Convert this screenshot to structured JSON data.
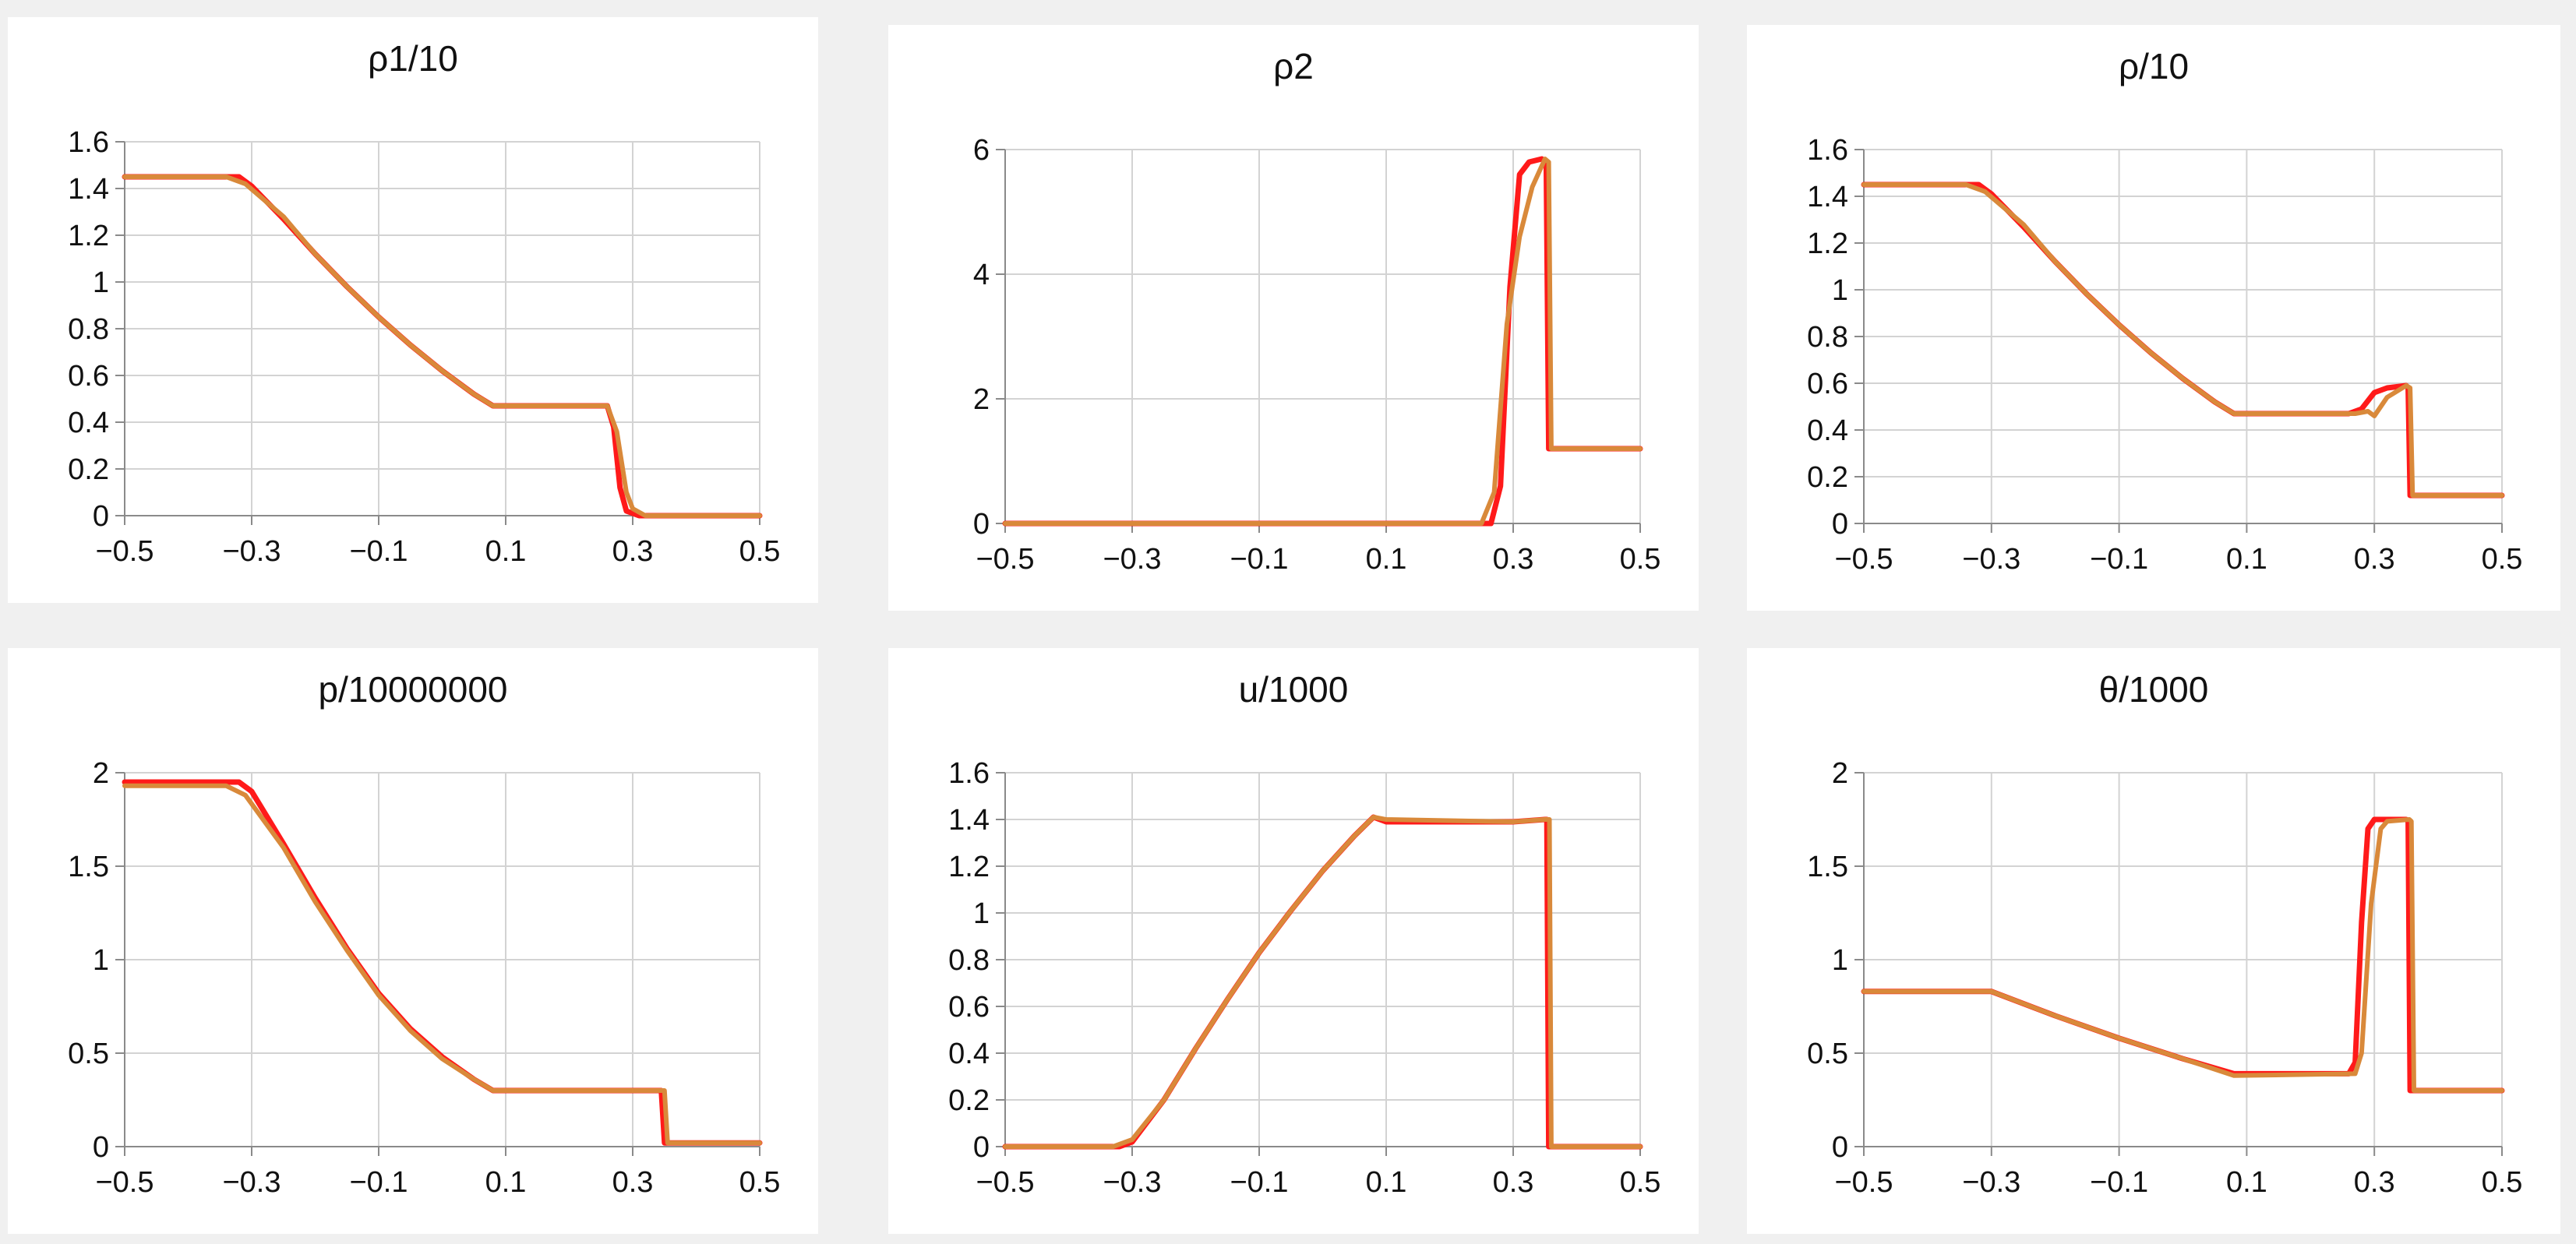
{
  "colors": {
    "series_a": "#ff1a1a",
    "series_b": "#d9893a",
    "grid": "#d3d3d3",
    "panel_bg": "#ffffff",
    "page_bg": "#f0f0f0"
  },
  "chart_data": [
    {
      "type": "line",
      "title": "ρ1/10",
      "xlim": [
        -0.5,
        0.5
      ],
      "ylim": [
        0,
        1.6
      ],
      "xticks": [
        -0.5,
        -0.3,
        -0.1,
        0.1,
        0.3,
        0.5
      ],
      "xtick_labels": [
        "−0.5",
        "−0.3",
        "−0.1",
        "0.1",
        "0.3",
        "0.5"
      ],
      "yticks": [
        0,
        0.2,
        0.4,
        0.6,
        0.8,
        1,
        1.2,
        1.4,
        1.6
      ],
      "ytick_labels": [
        "0",
        "0.2",
        "0.4",
        "0.6",
        "0.8",
        "1",
        "1.2",
        "1.4",
        "1.6"
      ],
      "grid": true,
      "series": [
        {
          "color": "#ff1a1a",
          "x": [
            -0.5,
            -0.32,
            -0.3,
            -0.25,
            -0.2,
            -0.15,
            -0.1,
            -0.05,
            0,
            0.05,
            0.08,
            0.26,
            0.27,
            0.28,
            0.29,
            0.31,
            0.5
          ],
          "y": [
            1.45,
            1.45,
            1.41,
            1.27,
            1.12,
            0.98,
            0.85,
            0.73,
            0.62,
            0.52,
            0.47,
            0.47,
            0.38,
            0.12,
            0.02,
            0.0,
            0.0
          ]
        },
        {
          "color": "#d9893a",
          "x": [
            -0.5,
            -0.34,
            -0.31,
            -0.25,
            -0.2,
            -0.15,
            -0.1,
            -0.05,
            0,
            0.05,
            0.08,
            0.26,
            0.275,
            0.29,
            0.3,
            0.32,
            0.5
          ],
          "y": [
            1.45,
            1.45,
            1.42,
            1.28,
            1.12,
            0.98,
            0.85,
            0.73,
            0.62,
            0.52,
            0.47,
            0.47,
            0.36,
            0.1,
            0.03,
            0.0,
            0.0
          ]
        }
      ]
    },
    {
      "type": "line",
      "title": "ρ2",
      "xlim": [
        -0.5,
        0.5
      ],
      "ylim": [
        0,
        6
      ],
      "xticks": [
        -0.5,
        -0.3,
        -0.1,
        0.1,
        0.3,
        0.5
      ],
      "xtick_labels": [
        "−0.5",
        "−0.3",
        "−0.1",
        "0.1",
        "0.3",
        "0.5"
      ],
      "yticks": [
        0,
        2,
        4,
        6
      ],
      "ytick_labels": [
        "0",
        "2",
        "4",
        "6"
      ],
      "grid": true,
      "series": [
        {
          "color": "#ff1a1a",
          "x": [
            -0.5,
            0.265,
            0.28,
            0.295,
            0.31,
            0.325,
            0.345,
            0.352,
            0.356,
            0.5
          ],
          "y": [
            0,
            0,
            0.6,
            3.8,
            5.6,
            5.8,
            5.85,
            5.8,
            1.2,
            1.2
          ]
        },
        {
          "color": "#d9893a",
          "x": [
            -0.5,
            0.25,
            0.27,
            0.29,
            0.31,
            0.33,
            0.35,
            0.356,
            0.36,
            0.5
          ],
          "y": [
            0,
            0,
            0.5,
            3.2,
            4.6,
            5.4,
            5.85,
            5.8,
            1.2,
            1.2
          ]
        }
      ]
    },
    {
      "type": "line",
      "title": "ρ/10",
      "xlim": [
        -0.5,
        0.5
      ],
      "ylim": [
        0,
        1.6
      ],
      "xticks": [
        -0.5,
        -0.3,
        -0.1,
        0.1,
        0.3,
        0.5
      ],
      "xtick_labels": [
        "−0.5",
        "−0.3",
        "−0.1",
        "0.1",
        "0.3",
        "0.5"
      ],
      "yticks": [
        0,
        0.2,
        0.4,
        0.6,
        0.8,
        1,
        1.2,
        1.4,
        1.6
      ],
      "ytick_labels": [
        "0",
        "0.2",
        "0.4",
        "0.6",
        "0.8",
        "1",
        "1.2",
        "1.4",
        "1.6"
      ],
      "grid": true,
      "series": [
        {
          "color": "#ff1a1a",
          "x": [
            -0.5,
            -0.32,
            -0.3,
            -0.25,
            -0.2,
            -0.15,
            -0.1,
            -0.05,
            0,
            0.05,
            0.08,
            0.26,
            0.28,
            0.3,
            0.32,
            0.35,
            0.353,
            0.356,
            0.5
          ],
          "y": [
            1.45,
            1.45,
            1.41,
            1.27,
            1.12,
            0.98,
            0.85,
            0.73,
            0.62,
            0.52,
            0.47,
            0.47,
            0.49,
            0.56,
            0.58,
            0.59,
            0.58,
            0.12,
            0.12
          ]
        },
        {
          "color": "#d9893a",
          "x": [
            -0.5,
            -0.34,
            -0.31,
            -0.25,
            -0.2,
            -0.15,
            -0.1,
            -0.05,
            0,
            0.05,
            0.08,
            0.27,
            0.29,
            0.3,
            0.32,
            0.35,
            0.356,
            0.36,
            0.5
          ],
          "y": [
            1.45,
            1.45,
            1.42,
            1.28,
            1.12,
            0.98,
            0.85,
            0.73,
            0.62,
            0.52,
            0.47,
            0.47,
            0.48,
            0.46,
            0.54,
            0.59,
            0.58,
            0.12,
            0.12
          ]
        }
      ]
    },
    {
      "type": "line",
      "title": "p/10000000",
      "xlim": [
        -0.5,
        0.5
      ],
      "ylim": [
        0,
        2
      ],
      "xticks": [
        -0.5,
        -0.3,
        -0.1,
        0.1,
        0.3,
        0.5
      ],
      "xtick_labels": [
        "−0.5",
        "−0.3",
        "−0.1",
        "0.1",
        "0.3",
        "0.5"
      ],
      "yticks": [
        0,
        0.5,
        1,
        1.5,
        2
      ],
      "ytick_labels": [
        "0",
        "0.5",
        "1",
        "1.5",
        "2"
      ],
      "grid": true,
      "series": [
        {
          "color": "#ff1a1a",
          "x": [
            -0.5,
            -0.32,
            -0.3,
            -0.25,
            -0.2,
            -0.15,
            -0.1,
            -0.05,
            0,
            0.05,
            0.08,
            0.34,
            0.345,
            0.35,
            0.5
          ],
          "y": [
            1.95,
            1.95,
            1.9,
            1.62,
            1.33,
            1.06,
            0.82,
            0.63,
            0.48,
            0.36,
            0.3,
            0.3,
            0.3,
            0.02,
            0.02
          ]
        },
        {
          "color": "#d9893a",
          "x": [
            -0.5,
            -0.34,
            -0.31,
            -0.25,
            -0.2,
            -0.15,
            -0.1,
            -0.05,
            0,
            0.05,
            0.08,
            0.345,
            0.35,
            0.355,
            0.5
          ],
          "y": [
            1.93,
            1.93,
            1.88,
            1.6,
            1.31,
            1.05,
            0.81,
            0.62,
            0.47,
            0.36,
            0.3,
            0.3,
            0.3,
            0.02,
            0.02
          ]
        }
      ]
    },
    {
      "type": "line",
      "title": "u/1000",
      "xlim": [
        -0.5,
        0.5
      ],
      "ylim": [
        0,
        1.6
      ],
      "xticks": [
        -0.5,
        -0.3,
        -0.1,
        0.1,
        0.3,
        0.5
      ],
      "xtick_labels": [
        "−0.5",
        "−0.3",
        "−0.1",
        "0.1",
        "0.3",
        "0.5"
      ],
      "yticks": [
        0,
        0.2,
        0.4,
        0.6,
        0.8,
        1,
        1.2,
        1.4,
        1.6
      ],
      "ytick_labels": [
        "0",
        "0.2",
        "0.4",
        "0.6",
        "0.8",
        "1",
        "1.2",
        "1.4",
        "1.6"
      ],
      "grid": true,
      "series": [
        {
          "color": "#ff1a1a",
          "x": [
            -0.5,
            -0.32,
            -0.3,
            -0.25,
            -0.2,
            -0.15,
            -0.1,
            -0.05,
            0,
            0.05,
            0.08,
            0.1,
            0.3,
            0.35,
            0.353,
            0.356,
            0.5
          ],
          "y": [
            0,
            0,
            0.02,
            0.2,
            0.42,
            0.63,
            0.83,
            1.01,
            1.18,
            1.33,
            1.41,
            1.39,
            1.39,
            1.4,
            1.4,
            0,
            0
          ]
        },
        {
          "color": "#d9893a",
          "x": [
            -0.5,
            -0.33,
            -0.3,
            -0.25,
            -0.2,
            -0.15,
            -0.1,
            -0.05,
            0,
            0.05,
            0.08,
            0.1,
            0.3,
            0.35,
            0.357,
            0.36,
            0.5
          ],
          "y": [
            0,
            0,
            0.03,
            0.2,
            0.42,
            0.63,
            0.83,
            1.01,
            1.18,
            1.33,
            1.41,
            1.4,
            1.39,
            1.4,
            1.4,
            0,
            0
          ]
        }
      ]
    },
    {
      "type": "line",
      "title": "θ/1000",
      "xlim": [
        -0.5,
        0.5
      ],
      "ylim": [
        0,
        2
      ],
      "xticks": [
        -0.5,
        -0.3,
        -0.1,
        0.1,
        0.3,
        0.5
      ],
      "xtick_labels": [
        "−0.5",
        "−0.3",
        "−0.1",
        "0.1",
        "0.3",
        "0.5"
      ],
      "yticks": [
        0,
        0.5,
        1,
        1.5,
        2
      ],
      "ytick_labels": [
        "0",
        "0.5",
        "1",
        "1.5",
        "2"
      ],
      "grid": true,
      "series": [
        {
          "color": "#ff1a1a",
          "x": [
            -0.5,
            -0.3,
            -0.2,
            -0.1,
            0,
            0.08,
            0.26,
            0.27,
            0.28,
            0.29,
            0.3,
            0.35,
            0.353,
            0.356,
            0.5
          ],
          "y": [
            0.83,
            0.83,
            0.7,
            0.58,
            0.47,
            0.39,
            0.39,
            0.45,
            1.2,
            1.7,
            1.75,
            1.75,
            1.74,
            0.3,
            0.3
          ]
        },
        {
          "color": "#d9893a",
          "x": [
            -0.5,
            -0.3,
            -0.2,
            -0.1,
            0,
            0.08,
            0.27,
            0.28,
            0.295,
            0.31,
            0.32,
            0.355,
            0.358,
            0.362,
            0.5
          ],
          "y": [
            0.83,
            0.83,
            0.7,
            0.58,
            0.47,
            0.38,
            0.39,
            0.5,
            1.3,
            1.7,
            1.74,
            1.75,
            1.74,
            0.3,
            0.3
          ]
        }
      ]
    }
  ]
}
